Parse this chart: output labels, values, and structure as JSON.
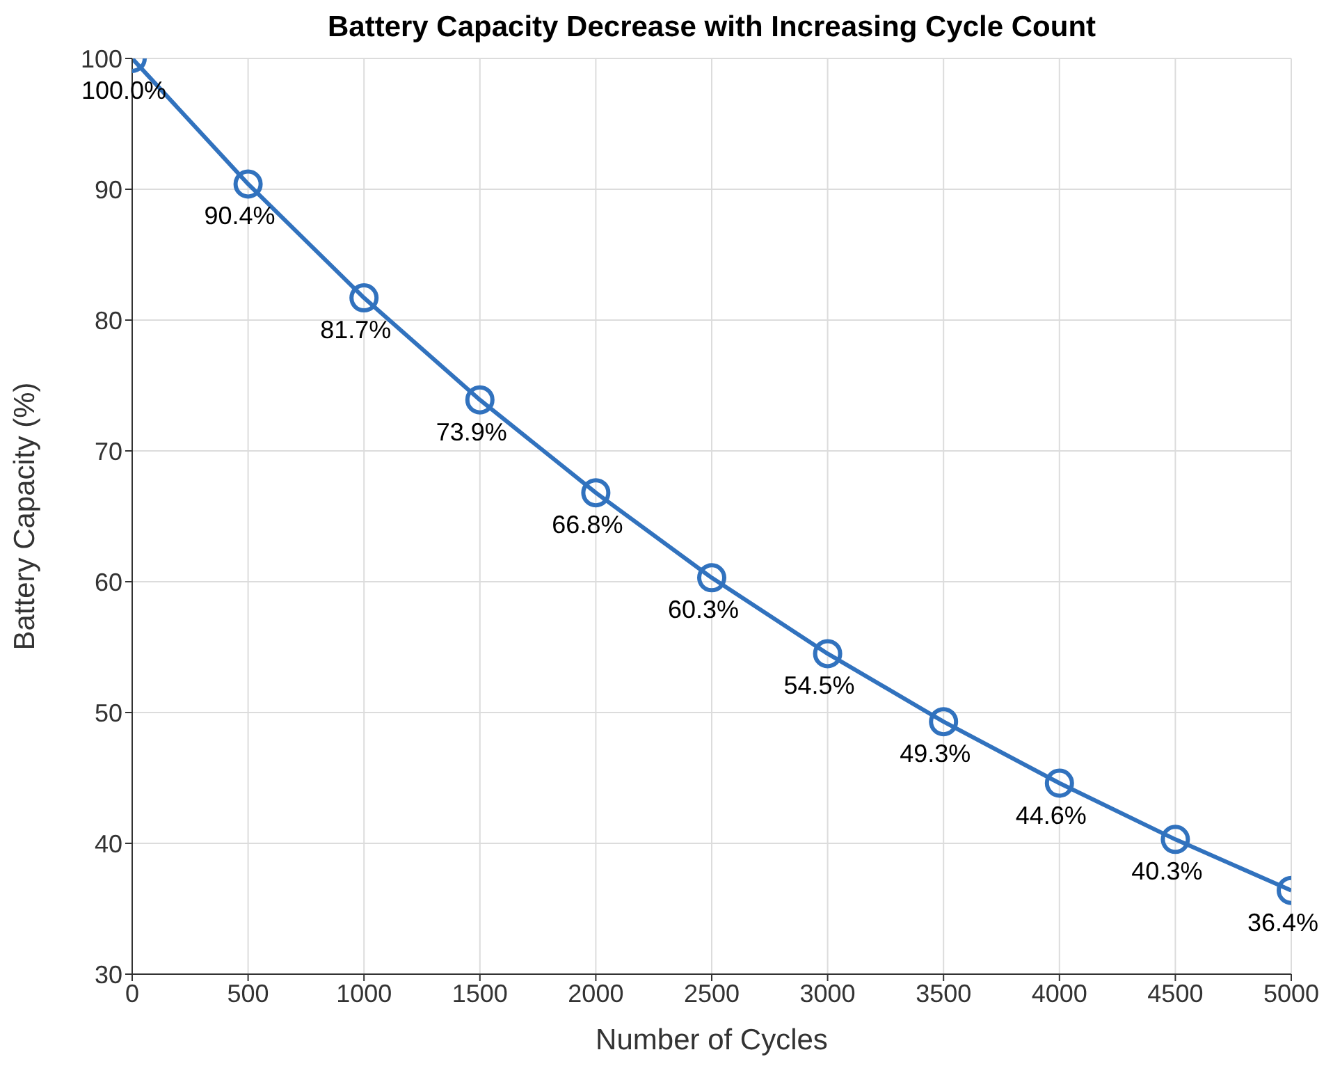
{
  "chart_data": {
    "type": "line",
    "title": "Battery Capacity Decrease with Increasing Cycle Count",
    "xlabel": "Number of Cycles",
    "ylabel": "Battery Capacity (%)",
    "x": [
      0,
      500,
      1000,
      1500,
      2000,
      2500,
      3000,
      3500,
      4000,
      4500,
      5000
    ],
    "series": [
      {
        "color": "#3172be",
        "values": [
          100,
          90.4,
          81.7,
          73.9,
          66.8,
          60.3,
          54.5,
          49.3,
          44.6,
          40.3,
          36.4
        ],
        "value_labels": [
          "100.0%",
          "90.4%",
          "81.7%",
          "73.9%",
          "66.8%",
          "60.3%",
          "54.5%",
          "49.3%",
          "44.6%",
          "40.3%",
          "36.4%"
        ]
      }
    ],
    "xlim": [
      0,
      5000
    ],
    "xticks": [
      0,
      500,
      1000,
      1500,
      2000,
      2500,
      3000,
      3500,
      4000,
      4500,
      5000
    ],
    "ylim": [
      30,
      100
    ],
    "yticks": [
      30,
      40,
      50,
      60,
      70,
      80,
      90,
      100
    ],
    "grid": true,
    "marker": "circle",
    "line_style": "solid"
  }
}
